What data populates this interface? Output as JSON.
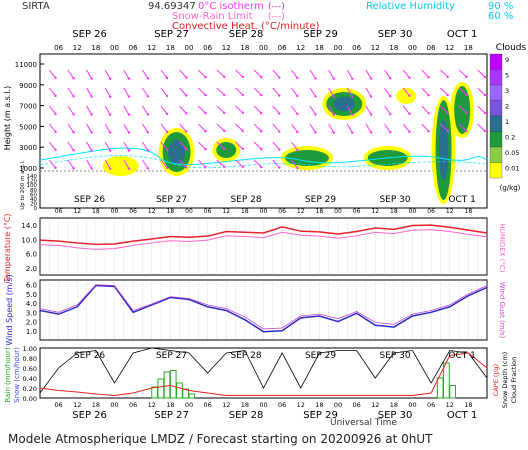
{
  "header": {
    "station": "SIRTA",
    "coord": "94.69347",
    "legend_isotherm": "0°C isotherm",
    "legend_snowrain": "Snow-Rain Limit",
    "legend_convective": "Convective Heat. (°C/minute)",
    "legend_isotherm_line": "(---)",
    "legend_snowrain_line": "(---)",
    "legend_convective_line": "(———)",
    "legend_rh": "Relative Humidity",
    "rh_90": "90 %",
    "rh_60": "60 %"
  },
  "footer": {
    "title": "Modele Atmospherique LMDZ / Forecast starting on 20200926 at 0hUT",
    "universal_time": "Universal Time"
  },
  "colors": {
    "cloud_low": "#ffff00",
    "cloud_mid": "#1e9a3c",
    "cloud_high": "#2a6f8f",
    "wind_arrow": "#ff33ff",
    "rh_line": "#00e5ff",
    "temperature": "#e8202a",
    "humidex": "#ff66cc",
    "wind_speed": "#2b2bcc",
    "wind_gust": "#cc44cc",
    "rain": "#22aa22",
    "snow": "#4444ff",
    "cape": "#ee2222",
    "snow_depth": "#000000"
  },
  "chart_data": [
    {
      "type": "heatmap",
      "panel": "clouds",
      "xlabel": "",
      "ylabel": "Height (m a.s.l.)",
      "ylabel2": "Up to 200 m a.g.l.",
      "x_ticks": [
        "06",
        "12",
        "18",
        "00",
        "06",
        "12",
        "18",
        "00",
        "06",
        "12",
        "18",
        "00",
        "06",
        "12",
        "18",
        "00",
        "06",
        "12",
        "18",
        "00",
        "06",
        "12",
        "18"
      ],
      "day_labels": [
        "SEP 26",
        "SEP 27",
        "SEP 28",
        "SEP 29",
        "SEP 30",
        "OCT 1"
      ],
      "y_ticks_upper": [
        "11000",
        "9000",
        "7000",
        "5000",
        "3000",
        "1000"
      ],
      "y_ticks_lower": [
        "140",
        "120",
        "100",
        "80",
        "60",
        "40",
        "20",
        "0"
      ],
      "colorbar_title": "Clouds",
      "colorbar_ticks": [
        "9",
        "5",
        "3",
        "2",
        "1",
        "0.2",
        "0.05",
        "0.01"
      ],
      "colorbar_unit": "(g/kg)"
    },
    {
      "type": "line",
      "panel": "temperature",
      "ylabel": "Temperature (°C)",
      "ylabel2": "HUMIDEX (°C)",
      "y_ticks": [
        "14.0",
        "10.0",
        "6.0",
        "2.0"
      ],
      "ylim": [
        0,
        16
      ],
      "x_hours": [
        0,
        6,
        12,
        18,
        24,
        30,
        36,
        42,
        48,
        54,
        60,
        66,
        72,
        78,
        84,
        90,
        96,
        102,
        108,
        114,
        120,
        126,
        132,
        138,
        144
      ],
      "series": [
        {
          "key": "temperature",
          "values": [
            9.8,
            9.5,
            9.0,
            8.6,
            8.7,
            9.5,
            10.1,
            10.8,
            10.6,
            10.9,
            12.2,
            12.0,
            11.8,
            13.5,
            12.3,
            12.1,
            11.5,
            12.2,
            13.2,
            12.8,
            13.9,
            14.0,
            13.4,
            12.6,
            11.8
          ]
        },
        {
          "key": "humidex",
          "values": [
            8.5,
            8.3,
            7.6,
            7.2,
            7.4,
            8.3,
            9.0,
            9.6,
            9.4,
            9.8,
            11.0,
            10.8,
            10.5,
            12.0,
            11.2,
            10.9,
            10.3,
            11.0,
            12.0,
            11.6,
            12.6,
            12.7,
            12.2,
            11.4,
            10.7
          ]
        }
      ]
    },
    {
      "type": "line",
      "panel": "wind",
      "ylabel": "Wind Speed (m/s)",
      "ylabel2": "Wind Gust (m/s)",
      "y_ticks": [
        "6.0",
        "5.0",
        "4.0",
        "3.0",
        "2.0",
        "1.0"
      ],
      "ylim": [
        0,
        6.5
      ],
      "x_hours": [
        0,
        6,
        12,
        18,
        24,
        30,
        36,
        42,
        48,
        54,
        60,
        66,
        72,
        78,
        84,
        90,
        96,
        102,
        108,
        114,
        120,
        126,
        132,
        138,
        144
      ],
      "series": [
        {
          "key": "wind_speed",
          "values": [
            3.2,
            2.8,
            3.6,
            5.9,
            5.8,
            3.0,
            3.8,
            4.6,
            4.4,
            3.6,
            3.2,
            2.2,
            0.9,
            1.0,
            2.4,
            2.6,
            2.0,
            2.9,
            1.6,
            1.4,
            2.6,
            3.0,
            3.6,
            4.8,
            5.7
          ]
        },
        {
          "key": "wind_gust",
          "values": [
            3.4,
            3.0,
            3.8,
            6.0,
            5.9,
            3.2,
            3.9,
            4.7,
            4.5,
            3.8,
            3.4,
            2.5,
            1.2,
            1.3,
            2.6,
            2.8,
            2.3,
            3.1,
            1.9,
            1.7,
            2.8,
            3.2,
            3.8,
            5.0,
            5.9
          ]
        }
      ]
    },
    {
      "type": "bar",
      "panel": "precipitation",
      "ylabel": "Rain (mm/hour)",
      "ylabel_snow": "Snow (cm/hour)",
      "ylabel2": "CAPE (J/g)",
      "ylabel3": "Snow Depth (cm)",
      "ylabel4": "Cloud Fraction",
      "y_ticks": [
        "1.00",
        "0.80",
        "0.60",
        "0.40",
        "0.20",
        "0.00"
      ],
      "ylim": [
        0,
        1.0
      ],
      "rain_hours": [
        36,
        38,
        40,
        42,
        44,
        46,
        48,
        128,
        130,
        132
      ],
      "rain_values": [
        0.22,
        0.38,
        0.52,
        0.55,
        0.3,
        0.18,
        0.08,
        0.4,
        0.7,
        0.25
      ],
      "cloud_fraction_hours": [
        0,
        6,
        12,
        18,
        24,
        30,
        36,
        42,
        48,
        54,
        60,
        66,
        72,
        78,
        84,
        90,
        96,
        102,
        108,
        114,
        120,
        126,
        132,
        138,
        144
      ],
      "cloud_fraction": [
        0.1,
        0.6,
        0.9,
        0.95,
        0.3,
        0.9,
        1.0,
        0.95,
        0.9,
        0.5,
        0.9,
        0.95,
        0.2,
        0.9,
        0.2,
        0.9,
        0.95,
        0.95,
        0.4,
        0.9,
        0.95,
        0.3,
        0.95,
        0.9,
        0.4
      ],
      "cape_hours": [
        0,
        6,
        12,
        18,
        24,
        30,
        36,
        42,
        48,
        54,
        60,
        66,
        72,
        78,
        84,
        90,
        96,
        102,
        108,
        114,
        120,
        126,
        132,
        138,
        144
      ],
      "cape": [
        0.2,
        0.15,
        0.12,
        0.08,
        0.05,
        0.1,
        0.2,
        0.25,
        0.15,
        0.1,
        0.05,
        0.05,
        0.05,
        0.05,
        0.05,
        0.05,
        0.05,
        0.05,
        0.05,
        0.05,
        0.05,
        0.1,
        0.85,
        0.9,
        0.6
      ]
    }
  ]
}
